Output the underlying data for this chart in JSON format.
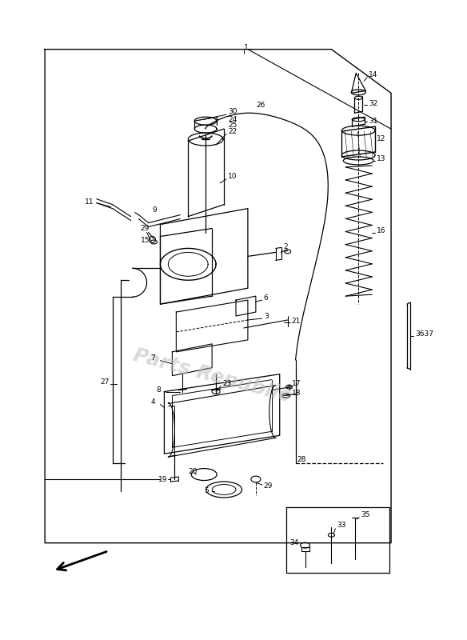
{
  "bg_color": "#ffffff",
  "line_color": "#000000",
  "text_color": "#000000",
  "watermark": "Parts Republic",
  "watermark_color": "#bbbbbb",
  "fig_width": 5.84,
  "fig_height": 8.0,
  "dpi": 100
}
